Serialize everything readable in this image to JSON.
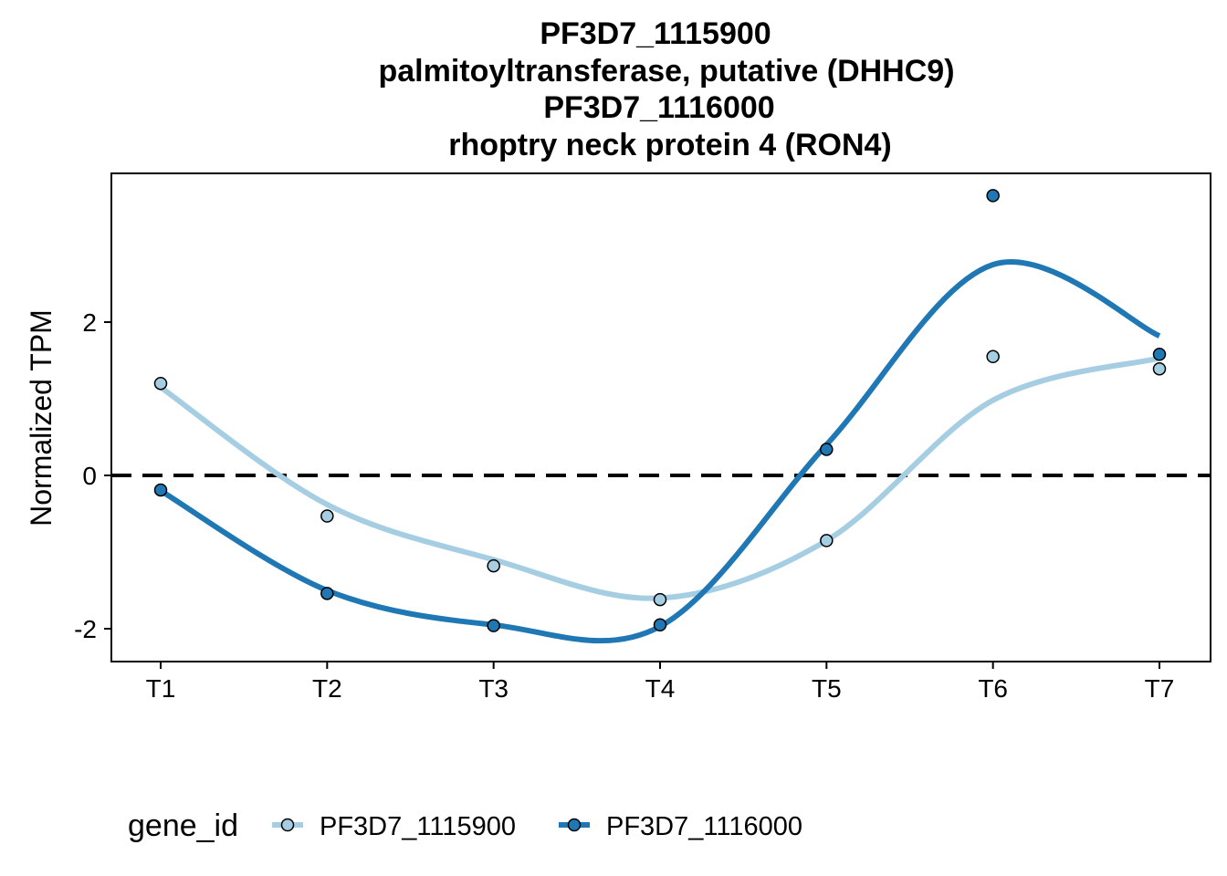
{
  "chart_data": {
    "type": "line",
    "title": [
      "PF3D7_1115900",
      "palmitoyltransferase, putative (DHHC9)",
      "PF3D7_1116000",
      "rhoptry neck protein 4 (RON4)"
    ],
    "xlabel": "",
    "ylabel": "Normalized TPM",
    "categories": [
      "T1",
      "T2",
      "T3",
      "T4",
      "T5",
      "T6",
      "T7"
    ],
    "yticks": [
      -2,
      0,
      2
    ],
    "ylim": [
      -2.4,
      3.95
    ],
    "reference_line": {
      "y": 0,
      "style": "dashed",
      "color": "#000000"
    },
    "legend": {
      "title": "gene_id",
      "position": "bottom-left"
    },
    "grid": false,
    "series": [
      {
        "name": "PF3D7_1115900",
        "color": "#a6cee3",
        "points": [
          1.2,
          -0.53,
          -1.18,
          -1.62,
          -0.85,
          1.55,
          1.39
        ],
        "smooth": [
          1.15,
          -0.38,
          -1.1,
          -1.6,
          -0.85,
          0.98,
          1.53
        ]
      },
      {
        "name": "PF3D7_1116000",
        "color": "#1f78b4",
        "points": [
          -0.19,
          -1.54,
          -1.96,
          -1.95,
          0.34,
          3.65,
          1.58
        ],
        "smooth": [
          -0.2,
          -1.5,
          -1.95,
          -1.97,
          0.4,
          2.75,
          1.82
        ]
      }
    ]
  }
}
